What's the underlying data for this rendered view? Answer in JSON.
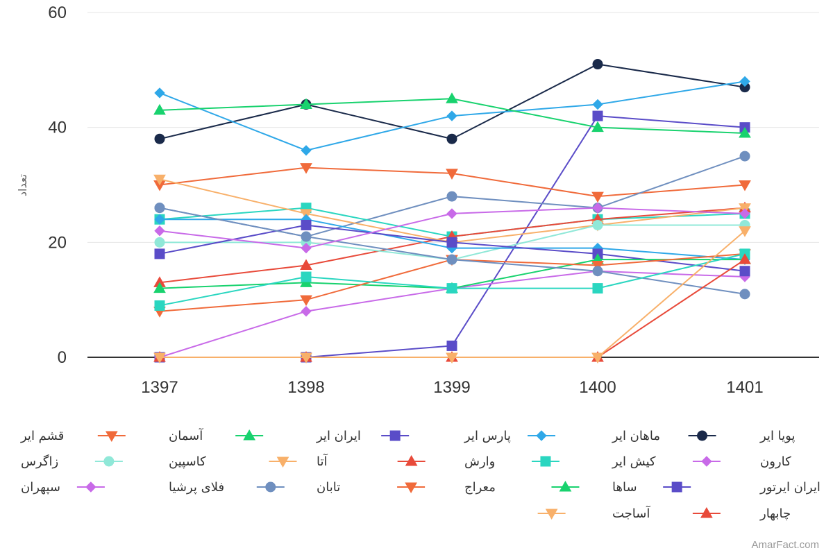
{
  "credit": "AmarFact.com",
  "chart_data": {
    "type": "line",
    "title": "",
    "xlabel": "",
    "ylabel": "تعداد",
    "x": [
      "1397",
      "1398",
      "1399",
      "1400",
      "1401"
    ],
    "ylim": [
      0,
      60
    ],
    "yticks": [
      0,
      20,
      40,
      60
    ],
    "grid": true,
    "legend_placement": "bottom",
    "series": [
      {
        "name": "پویا ایر",
        "color": "#1a2a4a",
        "marker": "circle",
        "values": [
          38,
          44,
          38,
          51,
          47
        ]
      },
      {
        "name": "ماهان ایر",
        "color": "#2fa8e8",
        "marker": "diamond",
        "values": [
          46,
          36,
          42,
          44,
          48
        ]
      },
      {
        "name": "پارس ایر",
        "color": "#5a4cc8",
        "marker": "square",
        "values": [
          0,
          0,
          2,
          42,
          40
        ]
      },
      {
        "name": "ایران ایر",
        "color": "#18d26e",
        "marker": "triangle",
        "values": [
          43,
          44,
          45,
          40,
          39
        ]
      },
      {
        "name": "آسمان",
        "color": "#f06a3a",
        "marker": "triangle-down",
        "values": [
          30,
          33,
          32,
          28,
          30
        ]
      },
      {
        "name": "قشم ایر",
        "color": "#6f8fbf",
        "marker": "circle",
        "values": [
          26,
          21,
          28,
          26,
          35
        ]
      },
      {
        "name": "کارون",
        "color": "#c86ae8",
        "marker": "diamond",
        "values": [
          0,
          8,
          12,
          15,
          14
        ]
      },
      {
        "name": "کیش ایر",
        "color": "#2ad6c0",
        "marker": "square",
        "values": [
          24,
          26,
          21,
          24,
          25
        ]
      },
      {
        "name": "وارش",
        "color": "#e84a3a",
        "marker": "triangle",
        "values": [
          13,
          16,
          21,
          24,
          26
        ]
      },
      {
        "name": "آتا",
        "color": "#f8b06a",
        "marker": "triangle-down",
        "values": [
          31,
          25,
          20,
          23,
          26
        ]
      },
      {
        "name": "کاسپین",
        "color": "#90e8d8",
        "marker": "circle",
        "values": [
          20,
          20,
          17,
          23,
          23
        ]
      },
      {
        "name": "زاگرس",
        "color": "#2fa8e8",
        "marker": "diamond",
        "values": [
          24,
          24,
          19,
          19,
          17
        ]
      },
      {
        "name": "ایران ایرتور",
        "color": "#5a4cc8",
        "marker": "square",
        "values": [
          18,
          23,
          20,
          18,
          15
        ]
      },
      {
        "name": "ساها",
        "color": "#18d26e",
        "marker": "triangle",
        "values": [
          12,
          13,
          12,
          17,
          17
        ]
      },
      {
        "name": "معراج",
        "color": "#f06a3a",
        "marker": "triangle-down",
        "values": [
          8,
          10,
          17,
          16,
          18
        ]
      },
      {
        "name": "تابان",
        "color": "#6f8fbf",
        "marker": "circle",
        "values": [
          26,
          21,
          17,
          15,
          11
        ]
      },
      {
        "name": "فلای پرشیا",
        "color": "#c86ae8",
        "marker": "diamond",
        "values": [
          22,
          19,
          25,
          26,
          25
        ]
      },
      {
        "name": "سپهران",
        "color": "#2ad6c0",
        "marker": "square",
        "values": [
          9,
          14,
          12,
          12,
          18
        ]
      },
      {
        "name": "چابهار",
        "color": "#e84a3a",
        "marker": "triangle",
        "values": [
          0,
          0,
          0,
          0,
          17
        ]
      },
      {
        "name": "آساجت",
        "color": "#f8b06a",
        "marker": "triangle-down",
        "values": [
          0,
          0,
          0,
          0,
          22
        ]
      }
    ]
  }
}
